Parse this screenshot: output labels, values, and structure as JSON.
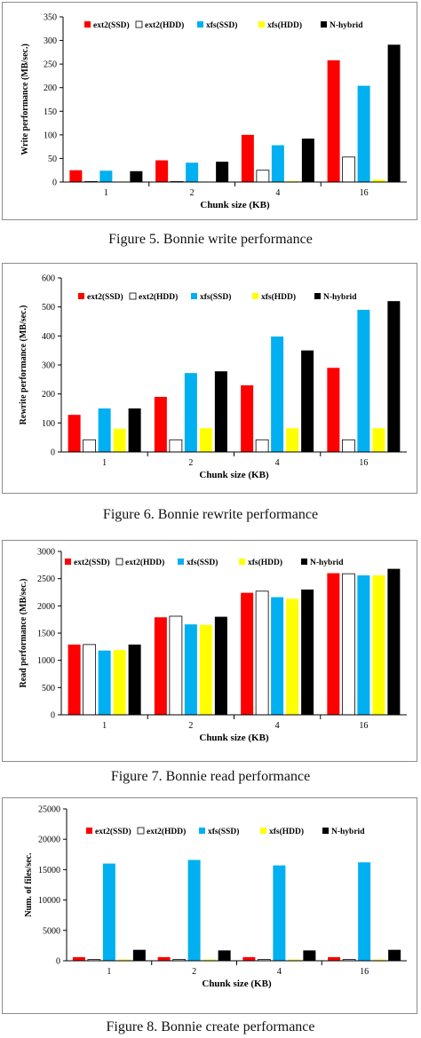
{
  "colors": {
    "ext2_ssd": "#ff0000",
    "ext2_hdd": "#ffffff",
    "xfs_ssd": "#00b0f0",
    "xfs_hdd": "#ffff00",
    "n_hybrid": "#000000"
  },
  "figures": [
    {
      "caption": "Figure 5. Bonnie write performance"
    },
    {
      "caption": "Figure 6. Bonnie rewrite performance"
    },
    {
      "caption": "Figure 7. Bonnie read performance"
    },
    {
      "caption": "Figure 8. Bonnie create performance"
    }
  ],
  "chart_data": [
    {
      "type": "bar",
      "title": "",
      "xlabel": "Chunk size (KB)",
      "ylabel": "Write performance (MB/sec.)",
      "categories": [
        "1",
        "2",
        "4",
        "16"
      ],
      "ylim": [
        0,
        350
      ],
      "yticks": [
        0,
        50,
        100,
        150,
        200,
        250,
        300,
        350
      ],
      "grid": false,
      "legend_position": "top",
      "series": [
        {
          "name": "ext2(SSD)",
          "color": "#ff0000",
          "values": [
            25,
            46,
            100,
            258
          ]
        },
        {
          "name": "ext2(HDD)",
          "color": "#ffffff",
          "values": [
            1,
            1,
            25,
            53
          ]
        },
        {
          "name": "xfs(SSD)",
          "color": "#00b0f0",
          "values": [
            24,
            41,
            78,
            204
          ]
        },
        {
          "name": "xfs(HDD)",
          "color": "#ffff00",
          "values": [
            1,
            1,
            2,
            5
          ]
        },
        {
          "name": "N-hybrid",
          "color": "#000000",
          "values": [
            23,
            43,
            92,
            291
          ]
        }
      ]
    },
    {
      "type": "bar",
      "title": "",
      "xlabel": "Chunk size (KB)",
      "ylabel": "Rewrite performance (MB/sec.)",
      "categories": [
        "1",
        "2",
        "4",
        "16"
      ],
      "ylim": [
        0,
        600
      ],
      "yticks": [
        0,
        100,
        200,
        300,
        400,
        500,
        600
      ],
      "grid": false,
      "legend_position": "top",
      "series": [
        {
          "name": "ext2(SSD)",
          "color": "#ff0000",
          "values": [
            128,
            190,
            230,
            290
          ]
        },
        {
          "name": "ext2(HDD)",
          "color": "#ffffff",
          "values": [
            42,
            42,
            42,
            42
          ]
        },
        {
          "name": "xfs(SSD)",
          "color": "#00b0f0",
          "values": [
            150,
            272,
            398,
            490
          ]
        },
        {
          "name": "xfs(HDD)",
          "color": "#ffff00",
          "values": [
            80,
            82,
            82,
            82
          ]
        },
        {
          "name": "N-hybrid",
          "color": "#000000",
          "values": [
            150,
            278,
            350,
            520
          ]
        }
      ]
    },
    {
      "type": "bar",
      "title": "",
      "xlabel": "Chunk size (KB)",
      "ylabel": "Read performance (MB/sec.)",
      "categories": [
        "1",
        "2",
        "4",
        "16"
      ],
      "ylim": [
        0,
        3000
      ],
      "yticks": [
        0,
        500,
        1000,
        1500,
        2000,
        2500,
        3000
      ],
      "grid": false,
      "legend_position": "top",
      "series": [
        {
          "name": "ext2(SSD)",
          "color": "#ff0000",
          "values": [
            1290,
            1790,
            2240,
            2600
          ]
        },
        {
          "name": "ext2(HDD)",
          "color": "#ffffff",
          "values": [
            1290,
            1810,
            2270,
            2590
          ]
        },
        {
          "name": "xfs(SSD)",
          "color": "#00b0f0",
          "values": [
            1180,
            1660,
            2160,
            2560
          ]
        },
        {
          "name": "xfs(HDD)",
          "color": "#ffff00",
          "values": [
            1190,
            1650,
            2130,
            2560
          ]
        },
        {
          "name": "N-hybrid",
          "color": "#000000",
          "values": [
            1290,
            1800,
            2300,
            2680
          ]
        }
      ]
    },
    {
      "type": "bar",
      "title": "",
      "xlabel": "Chunk size (KB)",
      "ylabel": "Num. of files/sec.",
      "categories": [
        "1",
        "2",
        "4",
        "16"
      ],
      "ylim": [
        0,
        25000
      ],
      "yticks": [
        0,
        5000,
        10000,
        15000,
        20000,
        25000
      ],
      "grid": false,
      "legend_position": "top",
      "series": [
        {
          "name": "ext2(SSD)",
          "color": "#ff0000",
          "values": [
            600,
            600,
            600,
            600
          ]
        },
        {
          "name": "ext2(HDD)",
          "color": "#ffffff",
          "values": [
            200,
            200,
            200,
            200
          ]
        },
        {
          "name": "xfs(SSD)",
          "color": "#00b0f0",
          "values": [
            16000,
            16600,
            15700,
            16200
          ]
        },
        {
          "name": "xfs(HDD)",
          "color": "#ffff00",
          "values": [
            200,
            200,
            200,
            200
          ]
        },
        {
          "name": "N-hybrid",
          "color": "#000000",
          "values": [
            1800,
            1700,
            1700,
            1800
          ]
        }
      ]
    }
  ]
}
